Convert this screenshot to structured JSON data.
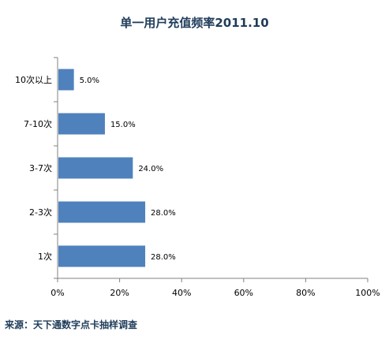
{
  "chart_data": {
    "type": "bar",
    "orientation": "horizontal",
    "title": "单一用户充值频率2011.10",
    "categories": [
      "10次以上",
      "7-10次",
      "3-7次",
      "2-3次",
      "1次"
    ],
    "values": [
      5.0,
      15.0,
      24.0,
      28.0,
      28.0
    ],
    "data_labels": [
      "5.0%",
      "15.0%",
      "24.0%",
      "28.0%",
      "28.0%"
    ],
    "xlim": [
      0,
      100
    ],
    "x_ticks": [
      "0%",
      "20%",
      "40%",
      "60%",
      "80%",
      "100%"
    ],
    "xlabel": "",
    "ylabel": "",
    "grid": false,
    "legend": "none",
    "bar_color": "#4f81bd"
  },
  "source": "来源：天下通数字点卡抽样调查"
}
